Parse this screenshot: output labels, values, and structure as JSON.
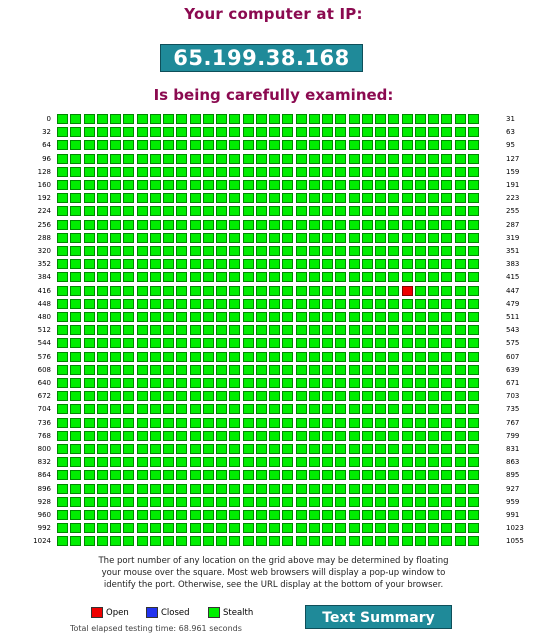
{
  "header": {
    "title": "Your computer at IP:",
    "ip": "65.199.38.168",
    "subtitle": "Is being carefully examined:"
  },
  "grid": {
    "rows": 33,
    "cols": 32,
    "open_ports": [
      442
    ],
    "closed_ports": [],
    "row_start_labels": [
      "0",
      "32",
      "64",
      "96",
      "128",
      "160",
      "192",
      "224",
      "256",
      "288",
      "320",
      "352",
      "384",
      "416",
      "448",
      "480",
      "512",
      "544",
      "576",
      "608",
      "640",
      "672",
      "704",
      "736",
      "768",
      "800",
      "832",
      "864",
      "896",
      "928",
      "960",
      "992",
      "1024"
    ],
    "row_end_labels": [
      "31",
      "63",
      "95",
      "127",
      "159",
      "191",
      "223",
      "255",
      "287",
      "319",
      "351",
      "383",
      "415",
      "447",
      "479",
      "511",
      "543",
      "575",
      "607",
      "639",
      "671",
      "703",
      "735",
      "767",
      "799",
      "831",
      "863",
      "895",
      "927",
      "959",
      "991",
      "1023",
      "1055"
    ]
  },
  "note": {
    "line1": "The port number of any location on the grid above may be determined by floating",
    "line2": "your mouse over the square. Most web browsers will display a pop-up window to",
    "line3": "identify the port. Otherwise, see the URL display at the bottom of your browser."
  },
  "legend": {
    "open_label": "Open",
    "closed_label": "Closed",
    "stealth_label": "Stealth",
    "open_color": "#ee0000",
    "closed_color": "#2233ee",
    "stealth_color": "#00ee00"
  },
  "summary_button_label": "Text Summary",
  "total_time_text": "Total elapsed testing time: 68.961 seconds"
}
